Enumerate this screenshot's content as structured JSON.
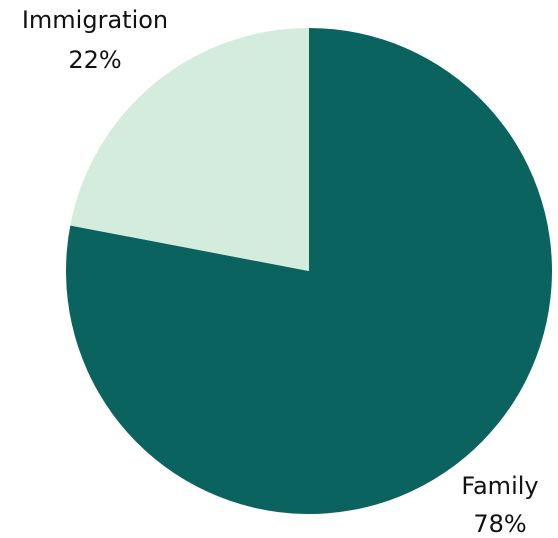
{
  "chart_data": {
    "type": "pie",
    "title": "",
    "slices": [
      {
        "label": "Family",
        "value": 78,
        "value_label": "78%",
        "color": "#0b6360"
      },
      {
        "label": "Immigration",
        "value": 22,
        "value_label": "22%",
        "color": "#d3ecdd"
      }
    ],
    "start_angle_deg": 0,
    "direction": "clockwise",
    "legend": "none"
  }
}
